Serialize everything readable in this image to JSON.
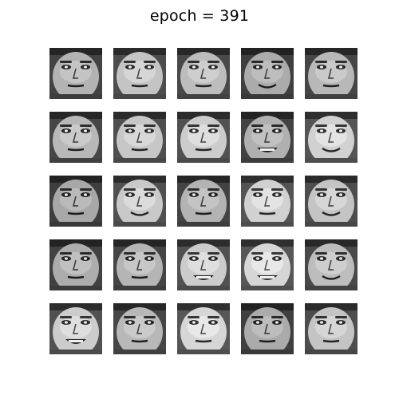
{
  "figure": {
    "title": "epoch = 391",
    "rows": 5,
    "cols": 5
  },
  "samples": [
    {
      "expression": "neutral",
      "tone": 0.48
    },
    {
      "expression": "neutral",
      "tone": 0.55
    },
    {
      "expression": "neutral",
      "tone": 0.52
    },
    {
      "expression": "smile",
      "tone": 0.45
    },
    {
      "expression": "neutral",
      "tone": 0.5
    },
    {
      "expression": "neutral",
      "tone": 0.5
    },
    {
      "expression": "neutral",
      "tone": 0.56
    },
    {
      "expression": "neutral",
      "tone": 0.58
    },
    {
      "expression": "grin",
      "tone": 0.47
    },
    {
      "expression": "smile",
      "tone": 0.6
    },
    {
      "expression": "neutral",
      "tone": 0.44
    },
    {
      "expression": "smile",
      "tone": 0.57
    },
    {
      "expression": "neutral",
      "tone": 0.48
    },
    {
      "expression": "neutral",
      "tone": 0.6
    },
    {
      "expression": "smile",
      "tone": 0.55
    },
    {
      "expression": "neutral",
      "tone": 0.46
    },
    {
      "expression": "neutral",
      "tone": 0.49
    },
    {
      "expression": "grin",
      "tone": 0.58
    },
    {
      "expression": "grin",
      "tone": 0.62
    },
    {
      "expression": "smile",
      "tone": 0.52
    },
    {
      "expression": "grin",
      "tone": 0.58
    },
    {
      "expression": "neutral",
      "tone": 0.5
    },
    {
      "expression": "neutral",
      "tone": 0.62
    },
    {
      "expression": "neutral",
      "tone": 0.45
    },
    {
      "expression": "neutral",
      "tone": 0.55
    }
  ]
}
